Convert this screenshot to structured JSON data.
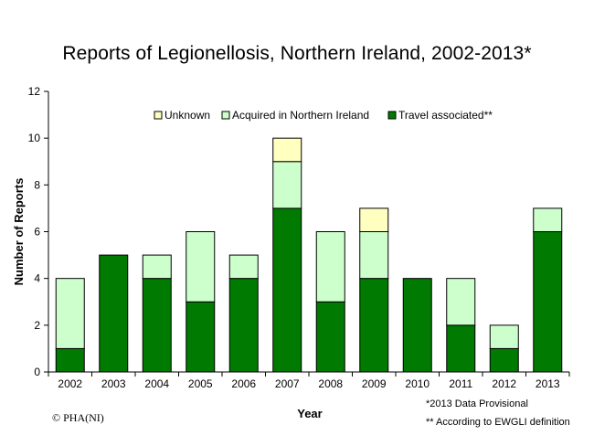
{
  "chart_data": {
    "type": "bar",
    "stacked": true,
    "title": "Reports of Legionellosis, Northern Ireland, 2002-2013*",
    "xlabel": "Year",
    "ylabel": "Number of Reports",
    "ylim": [
      0,
      12
    ],
    "yticks": [
      0,
      2,
      4,
      6,
      8,
      10,
      12
    ],
    "grid": false,
    "legend_position": "top",
    "categories": [
      "2002",
      "2003",
      "2004",
      "2005",
      "2006",
      "2007",
      "2008",
      "2009",
      "2010",
      "2011",
      "2012",
      "2013"
    ],
    "series": [
      {
        "name": "Travel associated**",
        "color": "#007a00",
        "values": [
          1,
          5,
          4,
          3,
          4,
          7,
          3,
          4,
          4,
          2,
          1,
          6
        ]
      },
      {
        "name": "Acquired in Northern Ireland",
        "color": "#ccffcc",
        "values": [
          3,
          0,
          1,
          3,
          1,
          2,
          3,
          2,
          0,
          2,
          1,
          1
        ]
      },
      {
        "name": "Unknown",
        "color": "#ffffc0",
        "values": [
          0,
          0,
          0,
          0,
          0,
          1,
          0,
          1,
          0,
          0,
          0,
          0
        ]
      }
    ],
    "legend_order": [
      "Unknown",
      "Acquired in Northern Ireland",
      "Travel associated**"
    ]
  },
  "footer": {
    "copyright": "© PHA(NI)",
    "note_provisional": "*2013 Data Provisional",
    "note_definition": "** According to EWGLI definition"
  }
}
